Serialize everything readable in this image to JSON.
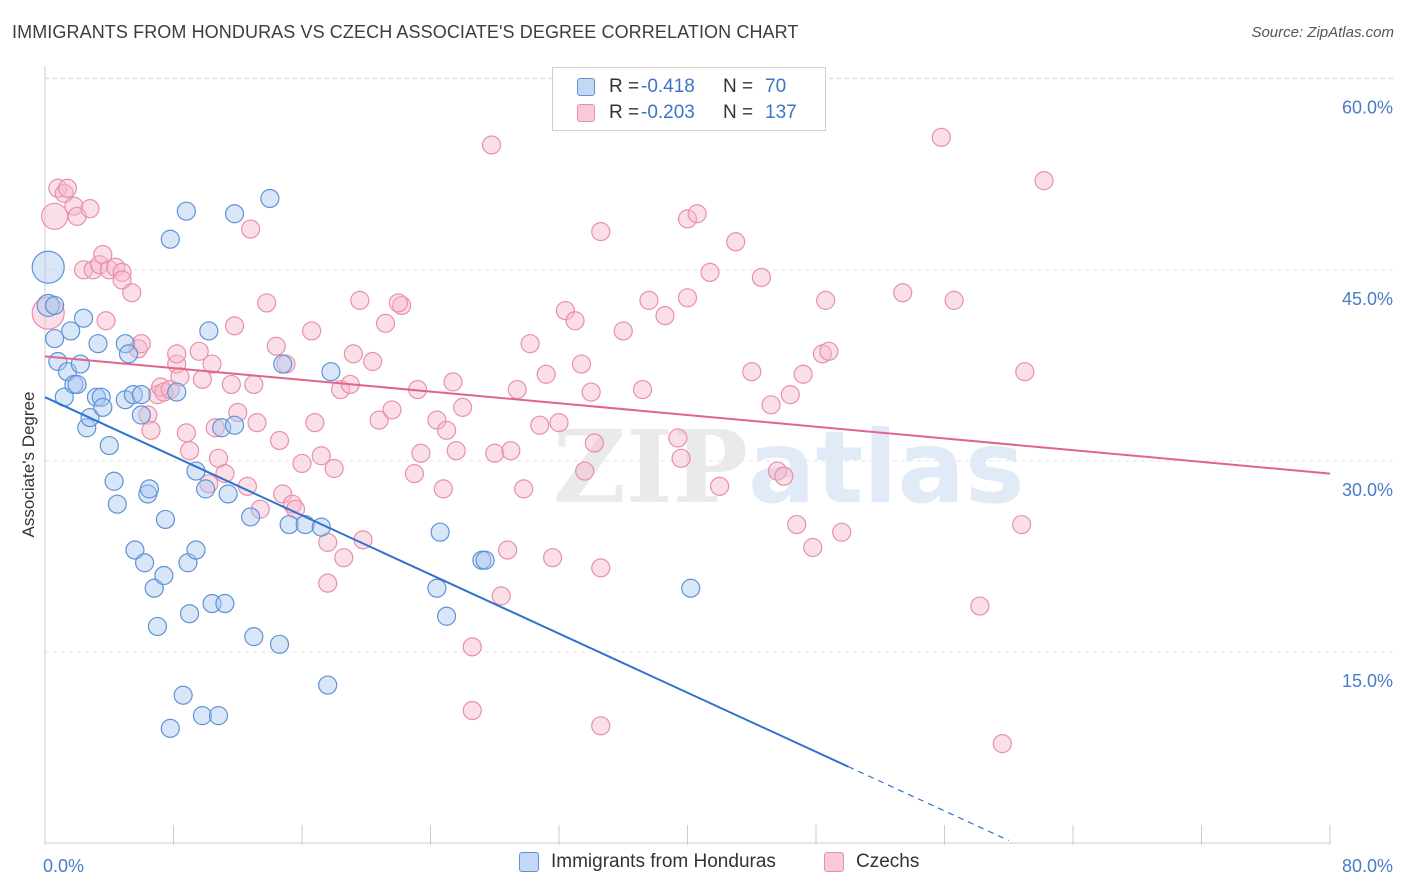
{
  "title": "IMMIGRANTS FROM HONDURAS VS CZECH ASSOCIATE'S DEGREE CORRELATION CHART",
  "source": "Source: ZipAtlas.com",
  "watermark": {
    "zip": "ZIP",
    "atlas": "atlas"
  },
  "legend": {
    "rows": [
      {
        "r_label": "R =",
        "r_value": "-0.418",
        "n_label": "N =",
        "n_value": "70"
      },
      {
        "r_label": "R =",
        "r_value": "-0.203",
        "n_label": "N =",
        "n_value": "137"
      }
    ]
  },
  "bottom_legend": [
    "Immigrants from Honduras",
    "Czechs"
  ],
  "colors": {
    "blue_fill": "#a9c8f0",
    "blue_stroke": "#5e93d6",
    "blue_line": "#2f73d0",
    "pink_fill": "#f7b9cc",
    "pink_stroke": "#e890aa",
    "pink_line": "#e0658c",
    "grid": "#e3e3e3",
    "tick_text": "#4a7cc9"
  },
  "chart_data": {
    "type": "scatter",
    "title": "IMMIGRANTS FROM HONDURAS VS CZECH ASSOCIATE'S DEGREE CORRELATION CHART",
    "xlabel": "",
    "ylabel": "Associate's Degree",
    "xlim": [
      0,
      80
    ],
    "ylim": [
      0,
      61
    ],
    "x_tick_labels": [
      "0.0%",
      "80.0%"
    ],
    "y_ticks": [
      15,
      30,
      45,
      60
    ],
    "y_tick_labels": [
      "15.0%",
      "30.0%",
      "45.0%",
      "60.0%"
    ],
    "grid": true,
    "series": [
      {
        "name": "Immigrants from Honduras",
        "R": -0.418,
        "N": 70,
        "trend": {
          "x0": 0,
          "y0": 35.0,
          "x1": 50,
          "y1": 6.0,
          "dash_to_x": 60,
          "dash_to_y": 0.2
        },
        "points": [
          [
            0.2,
            45.2,
            16
          ],
          [
            0.2,
            42.2,
            11
          ],
          [
            0.6,
            39.6,
            9
          ],
          [
            0.8,
            37.8,
            9
          ],
          [
            1.2,
            35,
            9
          ],
          [
            1.4,
            37,
            9
          ],
          [
            1.6,
            40.2,
            9
          ],
          [
            1.8,
            36,
            9
          ],
          [
            2.0,
            36,
            9
          ],
          [
            2.2,
            37.6,
            9
          ],
          [
            2.4,
            41.2,
            9
          ],
          [
            2.6,
            32.6,
            9
          ],
          [
            2.8,
            33.4,
            9
          ],
          [
            3.2,
            35,
            9
          ],
          [
            3.3,
            39.2,
            9
          ],
          [
            3.5,
            35,
            9
          ],
          [
            3.6,
            34.2,
            9
          ],
          [
            4.0,
            31.2,
            9
          ],
          [
            4.3,
            28.4,
            9
          ],
          [
            4.5,
            26.6,
            9
          ],
          [
            5.0,
            34.8,
            9
          ],
          [
            5.0,
            39.2,
            9
          ],
          [
            5.2,
            38.4,
            9
          ],
          [
            5.5,
            35.2,
            9
          ],
          [
            5.6,
            23,
            9
          ],
          [
            6.0,
            35.2,
            9
          ],
          [
            6.0,
            33.6,
            9
          ],
          [
            6.2,
            22,
            9
          ],
          [
            6.4,
            27.4,
            9
          ],
          [
            6.5,
            27.8,
            9
          ],
          [
            6.8,
            20,
            9
          ],
          [
            7.0,
            17,
            9
          ],
          [
            7.4,
            21,
            9
          ],
          [
            7.5,
            25.4,
            9
          ],
          [
            7.8,
            9,
            9
          ],
          [
            7.8,
            47.4,
            9
          ],
          [
            8.2,
            35.4,
            9
          ],
          [
            8.6,
            11.6,
            9
          ],
          [
            8.8,
            49.6,
            9
          ],
          [
            8.9,
            22,
            9
          ],
          [
            9.0,
            18,
            9
          ],
          [
            9.4,
            23,
            9
          ],
          [
            9.4,
            29.2,
            9
          ],
          [
            9.8,
            10,
            9
          ],
          [
            10.0,
            27.8,
            9
          ],
          [
            10.2,
            40.2,
            9
          ],
          [
            10.4,
            18.8,
            9
          ],
          [
            10.8,
            10,
            9
          ],
          [
            11.0,
            32.6,
            9
          ],
          [
            11.2,
            18.8,
            9
          ],
          [
            11.4,
            27.4,
            9
          ],
          [
            11.8,
            49.4,
            9
          ],
          [
            11.8,
            32.8,
            9
          ],
          [
            12.8,
            25.6,
            9
          ],
          [
            13.0,
            16.2,
            9
          ],
          [
            14.0,
            50.6,
            9
          ],
          [
            14.6,
            15.6,
            9
          ],
          [
            14.8,
            37.6,
            9
          ],
          [
            15.2,
            25,
            9
          ],
          [
            16.2,
            25,
            9
          ],
          [
            17.2,
            24.8,
            9
          ],
          [
            17.6,
            12.4,
            9
          ],
          [
            17.8,
            37,
            9
          ],
          [
            24.6,
            24.4,
            9
          ],
          [
            24.4,
            20,
            9
          ],
          [
            25.0,
            17.8,
            9
          ],
          [
            27.2,
            22.2,
            9
          ],
          [
            27.4,
            22.2,
            9
          ],
          [
            40.2,
            20,
            9
          ],
          [
            0.6,
            42.2,
            9
          ]
        ]
      },
      {
        "name": "Czechs",
        "R": -0.203,
        "N": 137,
        "trend": {
          "x0": 0,
          "y0": 38.2,
          "x1": 80,
          "y1": 29.0
        },
        "points": [
          [
            0.2,
            41.6,
            16
          ],
          [
            0.6,
            49.2,
            13
          ],
          [
            0.8,
            51.4,
            9
          ],
          [
            1.2,
            51,
            9
          ],
          [
            1.4,
            51.4,
            9
          ],
          [
            1.8,
            50,
            9
          ],
          [
            2.0,
            49.2,
            9
          ],
          [
            2.4,
            45,
            9
          ],
          [
            2.8,
            49.8,
            9
          ],
          [
            3.0,
            45,
            9
          ],
          [
            3.4,
            45.4,
            9
          ],
          [
            3.6,
            46.2,
            9
          ],
          [
            3.8,
            41,
            9
          ],
          [
            4.0,
            45,
            9
          ],
          [
            4.4,
            45.2,
            9
          ],
          [
            4.8,
            44.8,
            9
          ],
          [
            4.8,
            44.2,
            9
          ],
          [
            5.4,
            43.2,
            9
          ],
          [
            5.8,
            38.8,
            9
          ],
          [
            6.0,
            39.2,
            9
          ],
          [
            6.4,
            33.6,
            9
          ],
          [
            6.6,
            32.4,
            9
          ],
          [
            7.0,
            35.2,
            9
          ],
          [
            7.2,
            35.8,
            9
          ],
          [
            7.4,
            35.4,
            9
          ],
          [
            7.8,
            35.6,
            9
          ],
          [
            8.2,
            37.6,
            9
          ],
          [
            8.2,
            38.4,
            9
          ],
          [
            8.4,
            36.6,
            9
          ],
          [
            8.8,
            32.2,
            9
          ],
          [
            9.0,
            30.8,
            9
          ],
          [
            9.6,
            38.6,
            9
          ],
          [
            9.8,
            36.4,
            9
          ],
          [
            10.2,
            28.2,
            9
          ],
          [
            10.4,
            37.6,
            9
          ],
          [
            10.6,
            32.6,
            9
          ],
          [
            10.8,
            30.2,
            9
          ],
          [
            11.2,
            29,
            9
          ],
          [
            11.6,
            36,
            9
          ],
          [
            11.8,
            40.6,
            9
          ],
          [
            12.0,
            33.8,
            9
          ],
          [
            12.6,
            28,
            9
          ],
          [
            12.8,
            48.2,
            9
          ],
          [
            13.2,
            33,
            9
          ],
          [
            13.4,
            26.2,
            9
          ],
          [
            13.8,
            42.4,
            9
          ],
          [
            14.4,
            39,
            9
          ],
          [
            14.6,
            31.6,
            9
          ],
          [
            14.8,
            27.4,
            9
          ],
          [
            15.0,
            37.6,
            9
          ],
          [
            15.4,
            26.6,
            9
          ],
          [
            15.6,
            26.2,
            9
          ],
          [
            16.0,
            29.8,
            9
          ],
          [
            16.6,
            40.2,
            9
          ],
          [
            16.8,
            33,
            9
          ],
          [
            17.2,
            30.4,
            9
          ],
          [
            17.6,
            23.6,
            9
          ],
          [
            17.6,
            20.4,
            9
          ],
          [
            18.0,
            29.4,
            9
          ],
          [
            18.4,
            35.6,
            9
          ],
          [
            18.6,
            22.4,
            9
          ],
          [
            19.0,
            36,
            9
          ],
          [
            19.2,
            38.4,
            9
          ],
          [
            19.6,
            42.6,
            9
          ],
          [
            19.8,
            23.8,
            9
          ],
          [
            20.4,
            37.8,
            9
          ],
          [
            20.8,
            33.2,
            9
          ],
          [
            21.2,
            40.8,
            9
          ],
          [
            21.6,
            34,
            9
          ],
          [
            22.2,
            42.2,
            9
          ],
          [
            22.0,
            42.4,
            9
          ],
          [
            23.0,
            29,
            9
          ],
          [
            23.2,
            35.6,
            9
          ],
          [
            23.4,
            30.6,
            9
          ],
          [
            24.4,
            33.2,
            9
          ],
          [
            24.8,
            27.8,
            9
          ],
          [
            25.0,
            32.4,
            9
          ],
          [
            25.4,
            36.2,
            9
          ],
          [
            25.6,
            30.8,
            9
          ],
          [
            26.0,
            34.2,
            9
          ],
          [
            26.6,
            15.4,
            9
          ],
          [
            26.6,
            10.4,
            9
          ],
          [
            27.8,
            54.8,
            9
          ],
          [
            28.0,
            30.6,
            9
          ],
          [
            28.4,
            19.4,
            9
          ],
          [
            28.8,
            23,
            9
          ],
          [
            29.0,
            30.8,
            9
          ],
          [
            29.4,
            35.6,
            9
          ],
          [
            29.8,
            27.8,
            9
          ],
          [
            30.2,
            39.2,
            9
          ],
          [
            30.8,
            32.8,
            9
          ],
          [
            31.2,
            36.8,
            9
          ],
          [
            31.6,
            22.4,
            9
          ],
          [
            32.0,
            33,
            9
          ],
          [
            32.4,
            41.8,
            9
          ],
          [
            33.0,
            41,
            9
          ],
          [
            33.4,
            37.6,
            9
          ],
          [
            33.6,
            29.2,
            9
          ],
          [
            34.0,
            35.4,
            9
          ],
          [
            34.2,
            31.4,
            9
          ],
          [
            34.6,
            48,
            9
          ],
          [
            34.6,
            21.6,
            9
          ],
          [
            34.6,
            9.2,
            9
          ],
          [
            36.0,
            40.2,
            9
          ],
          [
            37.2,
            35.6,
            9
          ],
          [
            37.6,
            42.6,
            9
          ],
          [
            38.6,
            41.4,
            9
          ],
          [
            39.4,
            31.8,
            9
          ],
          [
            39.6,
            30.2,
            9
          ],
          [
            40.0,
            42.8,
            9
          ],
          [
            40.0,
            49,
            9
          ],
          [
            40.6,
            49.4,
            9
          ],
          [
            41.4,
            44.8,
            9
          ],
          [
            42.0,
            28,
            9
          ],
          [
            43.0,
            47.2,
            9
          ],
          [
            44.0,
            37,
            9
          ],
          [
            44.6,
            44.4,
            9
          ],
          [
            45.2,
            34.4,
            9
          ],
          [
            45.6,
            29.2,
            9
          ],
          [
            46.0,
            28.8,
            9
          ],
          [
            46.4,
            35.2,
            9
          ],
          [
            46.8,
            25,
            9
          ],
          [
            47.2,
            36.8,
            9
          ],
          [
            47.8,
            23.2,
            9
          ],
          [
            48.4,
            38.4,
            9
          ],
          [
            48.6,
            42.6,
            9
          ],
          [
            48.8,
            38.6,
            9
          ],
          [
            49.6,
            24.4,
            9
          ],
          [
            53.4,
            43.2,
            9
          ],
          [
            55.8,
            55.4,
            9
          ],
          [
            56.6,
            42.6,
            9
          ],
          [
            58.2,
            18.6,
            9
          ],
          [
            59.6,
            7.8,
            9
          ],
          [
            60.8,
            25,
            9
          ],
          [
            61.0,
            37,
            9
          ],
          [
            62.2,
            52,
            9
          ],
          [
            13.0,
            36.0,
            9
          ]
        ]
      }
    ]
  }
}
